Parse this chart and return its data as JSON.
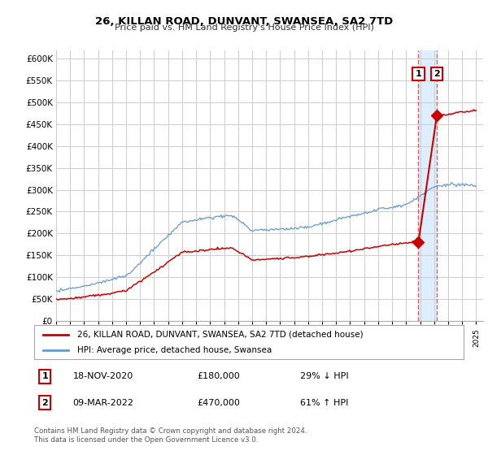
{
  "title": "26, KILLAN ROAD, DUNVANT, SWANSEA, SA2 7TD",
  "subtitle": "Price paid vs. HM Land Registry's House Price Index (HPI)",
  "ylim": [
    0,
    620000
  ],
  "yticks": [
    0,
    50000,
    100000,
    150000,
    200000,
    250000,
    300000,
    350000,
    400000,
    450000,
    500000,
    550000,
    600000
  ],
  "xlim_start": 1995.0,
  "xlim_end": 2025.5,
  "legend_label_red": "26, KILLAN ROAD, DUNVANT, SWANSEA, SA2 7TD (detached house)",
  "legend_label_blue": "HPI: Average price, detached house, Swansea",
  "transaction1_date": "18-NOV-2020",
  "transaction1_price": "£180,000",
  "transaction1_hpi": "29% ↓ HPI",
  "transaction1_year": 2020.88,
  "transaction1_value": 180000,
  "transaction2_date": "09-MAR-2022",
  "transaction2_price": "£470,000",
  "transaction2_hpi": "61% ↑ HPI",
  "transaction2_year": 2022.19,
  "transaction2_value": 470000,
  "footer": "Contains HM Land Registry data © Crown copyright and database right 2024.\nThis data is licensed under the Open Government Licence v3.0.",
  "red_color": "#cc0000",
  "blue_color": "#6699cc",
  "vline_color": "#e06060",
  "shade_color": "#ddeeff",
  "background_color": "#ffffff",
  "grid_color": "#cccccc"
}
